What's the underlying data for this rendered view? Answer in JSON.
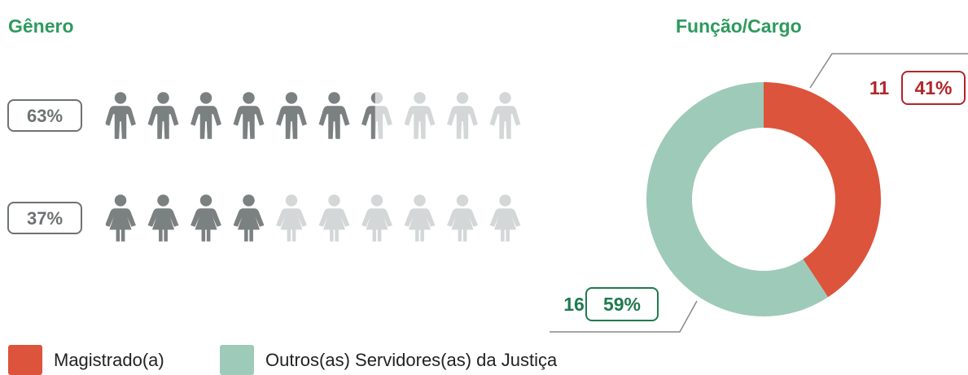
{
  "chart_data": [
    {
      "type": "pictogram",
      "title": "Gênero",
      "values": [
        63,
        37
      ],
      "value_labels": [
        "63%",
        "37%"
      ],
      "ylim": [
        0,
        100
      ],
      "color": "#7b8081",
      "faded_color": "#d4d7d7"
    },
    {
      "type": "donut",
      "title": "Função/Cargo",
      "categories": [
        "Magistrado(a)",
        "Outros(as) Servidores(as) da Justiça"
      ],
      "values": [
        11,
        16
      ],
      "percent_labels": [
        "41%",
        "59%"
      ],
      "colors": [
        "#dc543b",
        "#9ecab9"
      ],
      "label_colors": [
        "#b0262a",
        "#1f7a4d"
      ]
    }
  ]
}
